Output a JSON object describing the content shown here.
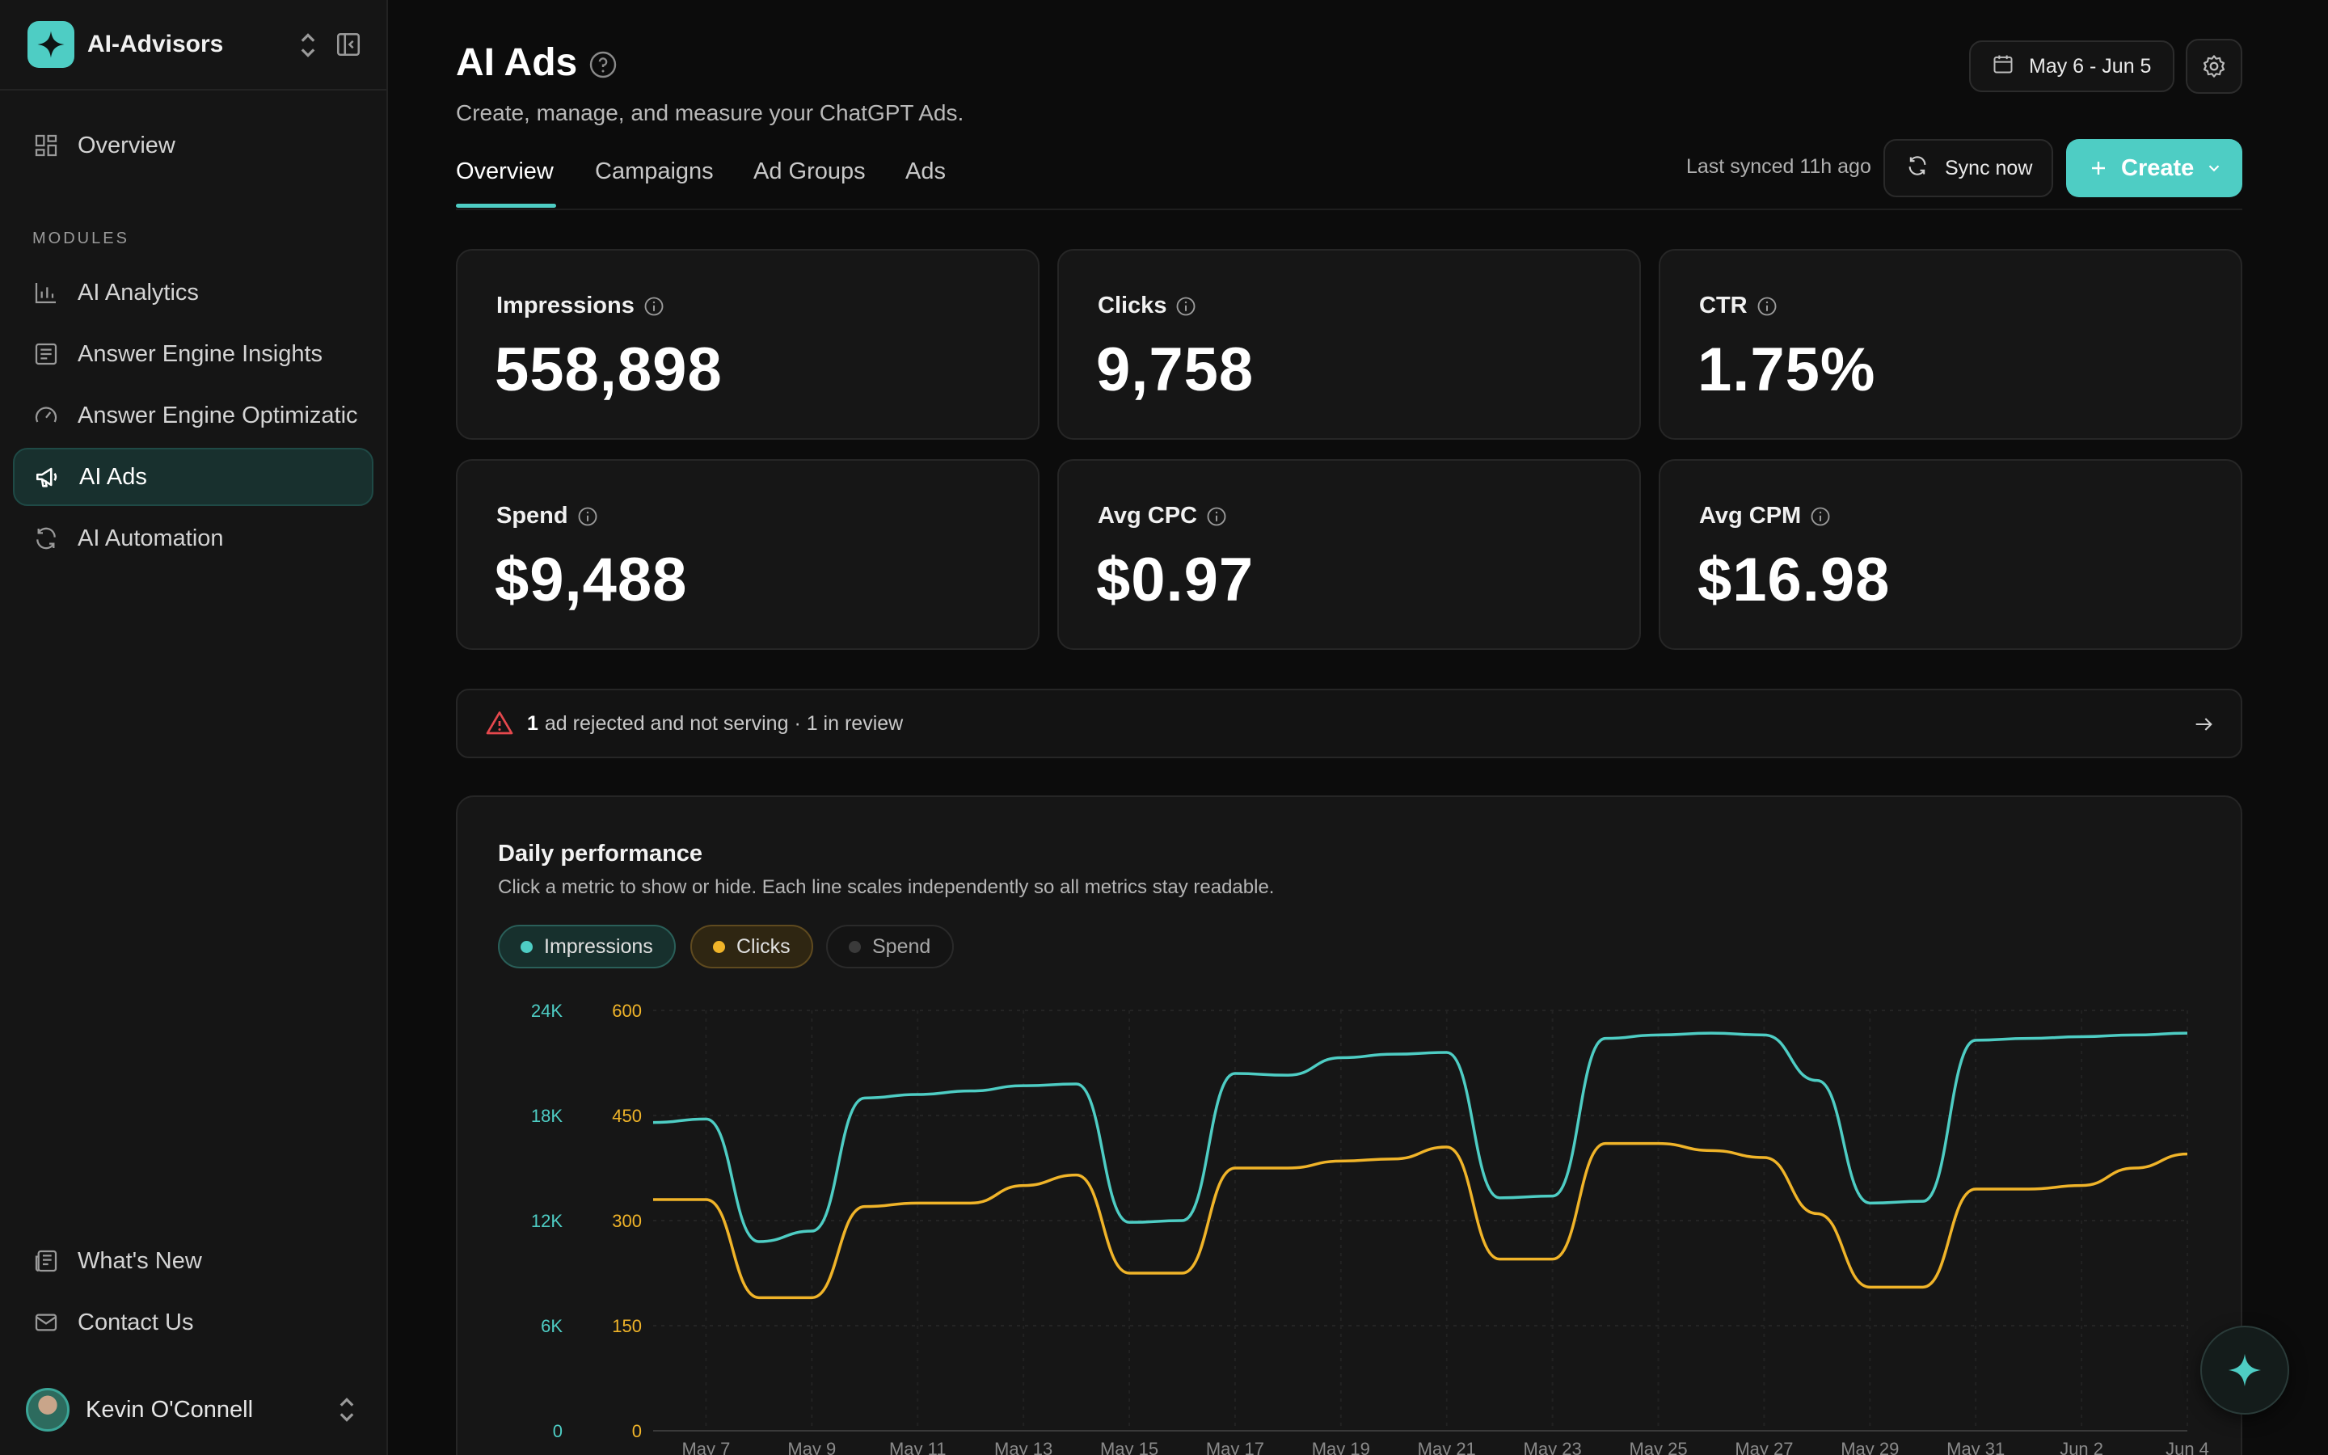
{
  "brand": {
    "name": "AI-Advisors",
    "logo_icon": "sparkle-icon",
    "accent": "#4ecdc4"
  },
  "sidebar": {
    "overview_label": "Overview",
    "section_label": "MODULES",
    "items": [
      {
        "label": "AI Analytics",
        "icon": "bar-chart-icon"
      },
      {
        "label": "Answer Engine Insights",
        "icon": "document-lines-icon"
      },
      {
        "label": "Answer Engine Optimizatic",
        "icon": "gauge-icon"
      },
      {
        "label": "AI Ads",
        "icon": "megaphone-icon",
        "active": true
      },
      {
        "label": "AI Automation",
        "icon": "refresh-icon"
      }
    ],
    "bottom": [
      {
        "label": "What's New",
        "icon": "newspaper-icon"
      },
      {
        "label": "Contact Us",
        "icon": "mail-icon"
      }
    ],
    "user": {
      "name": "Kevin O'Connell"
    }
  },
  "header": {
    "title": "AI Ads",
    "subtitle": "Create, manage, and measure your ChatGPT Ads.",
    "date_range": "May 6 - Jun 5",
    "tabs": [
      "Overview",
      "Campaigns",
      "Ad Groups",
      "Ads"
    ],
    "active_tab": "Overview",
    "last_synced": "Last synced 11h ago",
    "sync_label": "Sync now",
    "create_label": "Create"
  },
  "metrics": [
    {
      "label": "Impressions",
      "value": "558,898"
    },
    {
      "label": "Clicks",
      "value": "9,758"
    },
    {
      "label": "CTR",
      "value": "1.75%"
    },
    {
      "label": "Spend",
      "value": "$9,488"
    },
    {
      "label": "Avg CPC",
      "value": "$0.97"
    },
    {
      "label": "Avg CPM",
      "value": "$16.98"
    }
  ],
  "alert": {
    "count": "1",
    "text": "ad rejected and not serving · 1 in review"
  },
  "performance": {
    "title": "Daily performance",
    "subtitle": "Click a metric to show or hide. Each line scales independently so all metrics stay readable.",
    "toggles": [
      {
        "label": "Impressions",
        "color": "#4ecdc4",
        "on": true
      },
      {
        "label": "Clicks",
        "color": "#f0b429",
        "on": true
      },
      {
        "label": "Spend",
        "color": "#3a3a3a",
        "on": false
      }
    ]
  },
  "chart_data": {
    "type": "line",
    "x": [
      "May 6",
      "May 7",
      "May 8",
      "May 9",
      "May 10",
      "May 11",
      "May 12",
      "May 13",
      "May 14",
      "May 15",
      "May 16",
      "May 17",
      "May 18",
      "May 19",
      "May 20",
      "May 21",
      "May 22",
      "May 23",
      "May 24",
      "May 25",
      "May 26",
      "May 27",
      "May 28",
      "May 29",
      "May 30",
      "May 31",
      "Jun 1",
      "Jun 2",
      "Jun 3",
      "Jun 4"
    ],
    "x_tick_labels": [
      "May 7",
      "May 9",
      "May 11",
      "May 13",
      "May 15",
      "May 17",
      "May 19",
      "May 21",
      "May 23",
      "May 25",
      "May 27",
      "May 29",
      "May 31",
      "Jun 2",
      "Jun 4"
    ],
    "series": [
      {
        "name": "Impressions",
        "axis": "left",
        "color": "#4ecdc4",
        "values": [
          17600,
          17800,
          10800,
          11400,
          19000,
          19200,
          19400,
          19700,
          19800,
          11900,
          12000,
          20400,
          20300,
          21300,
          21500,
          21600,
          13300,
          13400,
          22400,
          22600,
          22700,
          22600,
          20000,
          13000,
          13100,
          22300,
          22400,
          22500,
          22600,
          22700
        ]
      },
      {
        "name": "Clicks",
        "axis": "right",
        "color": "#f0b429",
        "values": [
          330,
          330,
          190,
          190,
          320,
          325,
          325,
          350,
          365,
          225,
          225,
          375,
          375,
          385,
          388,
          405,
          245,
          245,
          410,
          410,
          400,
          390,
          310,
          205,
          205,
          345,
          345,
          350,
          375,
          395
        ]
      }
    ],
    "y_left": {
      "ticks": [
        "0",
        "6K",
        "12K",
        "18K",
        "24K"
      ],
      "max": 24000,
      "color": "#4ecdc4"
    },
    "y_right": {
      "ticks": [
        "0",
        "150",
        "300",
        "450",
        "600"
      ],
      "max": 600,
      "color": "#f0b429"
    },
    "grid": true
  }
}
